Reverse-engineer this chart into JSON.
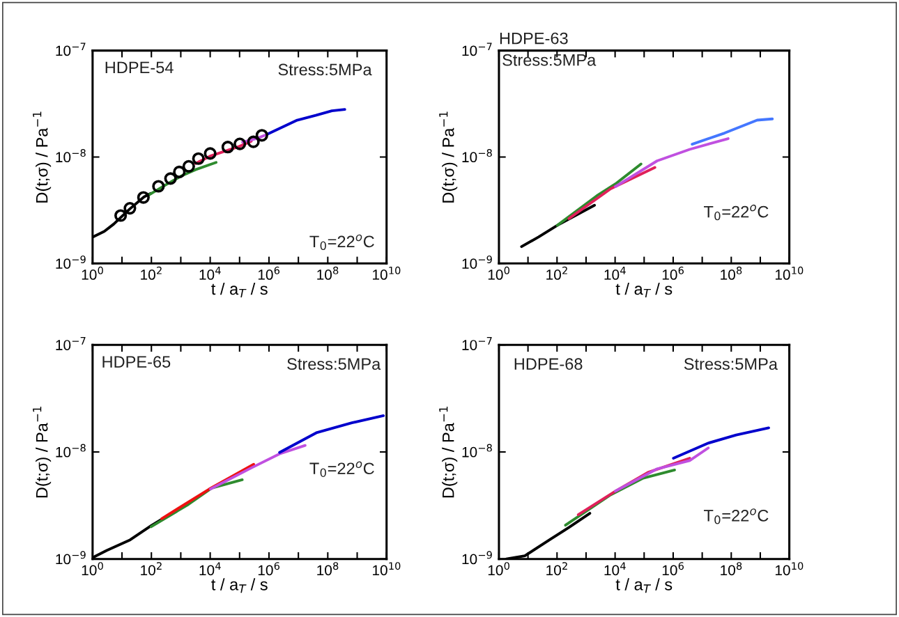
{
  "chart_data": [
    {
      "type": "line",
      "xlabel": "t / a$_{T}$ / s",
      "ylabel": "D(t;σ) / Pa$^{−1}$",
      "log": "xy",
      "grid": false,
      "marker": "none",
      "line_style": "solid",
      "xlim": [
        1,
        10000000000.0
      ],
      "ylim": [
        1e-09,
        1e-07
      ],
      "xticks": [
        {
          "value": 1,
          "label": "10$^{0}$"
        },
        {
          "value": 10,
          "label": null
        },
        {
          "value": 100,
          "label": "10$^{2}$"
        },
        {
          "value": 1000,
          "label": null
        },
        {
          "value": 10000,
          "label": "10$^{4}$"
        },
        {
          "value": 100000,
          "label": null
        },
        {
          "value": 1000000,
          "label": "10$^{6}$"
        },
        {
          "value": 10000000,
          "label": null
        },
        {
          "value": 100000000,
          "label": "10$^{8}$"
        },
        {
          "value": 1000000000,
          "label": null
        },
        {
          "value": 10000000000,
          "label": "10$^{10}$"
        }
      ],
      "yticks": [
        {
          "value": 1e-09,
          "label": "10$^{−9}$"
        },
        {
          "value": 1e-08,
          "label": "10$^{−8}$"
        },
        {
          "value": 1e-07,
          "label": "10$^{−7}$"
        }
      ],
      "annotations": [
        "HDPE-54",
        "Stress:5MPa",
        "T$_{0}$=22$^{o}$C"
      ],
      "series": [
        {
          "color": "#000000",
          "x": [
            1,
            2.5,
            5.2,
            18.6,
            56,
            95
          ],
          "values": [
            1.77e-09,
            2e-09,
            2.34e-09,
            3.26e-09,
            4.22e-09,
            4.55e-09
          ]
        },
        {
          "color": "#2e8b2e",
          "x": [
            79,
            316,
            1000,
            3162,
            15850
          ],
          "values": [
            4.37e-09,
            5.5e-09,
            6.6e-09,
            7.6e-09,
            8.9e-09
          ]
        },
        {
          "color": "#e0205a",
          "x": [
            3162,
            10000,
            100000,
            250000
          ],
          "values": [
            8.7e-09,
            1.02e-08,
            1.26e-08,
            1.41e-08
          ]
        },
        {
          "color": "#c050e0",
          "x": [
            126000,
            400000,
            800000
          ],
          "values": [
            1.38e-08,
            1.5e-08,
            1.62e-08
          ]
        },
        {
          "color": "#0000cc",
          "x": [
            850000,
            9100000,
            39000000,
            138000000,
            380000000
          ],
          "values": [
            1.63e-08,
            2.22e-08,
            2.46e-08,
            2.72e-08,
            2.8e-08
          ]
        },
        {
          "type": "scatter",
          "marker": "circle",
          "color": "#000000",
          "x": [
            9.0,
            18.6,
            53.7,
            174,
            447,
            891,
            1862,
            3981,
            10000,
            39800,
            102000,
            295000,
            575000
          ],
          "values": [
            2.82e-09,
            3.3e-09,
            4.17e-09,
            5.31e-09,
            6.28e-09,
            7.24e-09,
            8.18e-09,
            9.66e-09,
            1.08e-08,
            1.24e-08,
            1.33e-08,
            1.39e-08,
            1.6e-08
          ]
        }
      ]
    },
    {
      "type": "line",
      "xlabel": "t / a$_{T}$ / s",
      "ylabel": "D(t;σ) / Pa$^{−1}$",
      "log": "xy",
      "grid": false,
      "marker": "none",
      "line_style": "solid",
      "xlim": [
        1,
        10000000000.0
      ],
      "ylim": [
        1e-09,
        1e-07
      ],
      "xticks": [
        {
          "value": 1,
          "label": "10$^{0}$"
        },
        {
          "value": 10,
          "label": null
        },
        {
          "value": 100,
          "label": "10$^{2}$"
        },
        {
          "value": 1000,
          "label": null
        },
        {
          "value": 10000,
          "label": "10$^{4}$"
        },
        {
          "value": 100000,
          "label": null
        },
        {
          "value": 1000000,
          "label": "10$^{6}$"
        },
        {
          "value": 10000000,
          "label": null
        },
        {
          "value": 100000000,
          "label": "10$^{8}$"
        },
        {
          "value": 1000000000,
          "label": null
        },
        {
          "value": 10000000000,
          "label": "10$^{10}$"
        }
      ],
      "yticks": [
        {
          "value": 1e-09,
          "label": "10$^{−9}$"
        },
        {
          "value": 1e-08,
          "label": "10$^{−8}$"
        },
        {
          "value": 1e-07,
          "label": "10$^{−7}$"
        }
      ],
      "annotations": [
        "HDPE-63",
        "Stress:5MPa",
        "T$_{0}$=22$^{o}$C"
      ],
      "series": [
        {
          "color": "#000000",
          "x": [
            6,
            23,
            102,
            1950
          ],
          "values": [
            1.44e-09,
            1.77e-09,
            2.28e-09,
            3.52e-09
          ]
        },
        {
          "color": "#2e8b2e",
          "x": [
            102,
            2340,
            10200,
            78000
          ],
          "values": [
            2.28e-09,
            4.32e-09,
            5.58e-09,
            8.6e-09
          ]
        },
        {
          "color": "#e0205a",
          "x": [
            257,
            7080,
            234000
          ],
          "values": [
            2.64e-09,
            5.04e-09,
            7.98e-09
          ]
        },
        {
          "color": "#c050e0",
          "x": [
            10200,
            280000,
            3700000,
            78000000
          ],
          "values": [
            5.27e-09,
            9.2e-09,
            1.18e-08,
            1.49e-08
          ]
        },
        {
          "color": "#4477ff",
          "x": [
            4500000,
            59000000,
            780000000,
            2600000000
          ],
          "values": [
            1.32e-08,
            1.68e-08,
            2.22e-08,
            2.28e-08
          ]
        }
      ]
    },
    {
      "type": "line",
      "xlabel": "t / a$_{T}$ / s",
      "ylabel": "D(t;σ) / Pa$^{−1}$",
      "log": "xy",
      "grid": false,
      "marker": "none",
      "line_style": "solid",
      "xlim": [
        1,
        10000000000.0
      ],
      "ylim": [
        1e-09,
        1e-07
      ],
      "xticks": [
        {
          "value": 1,
          "label": "10$^{0}$"
        },
        {
          "value": 10,
          "label": null
        },
        {
          "value": 100,
          "label": "10$^{2}$"
        },
        {
          "value": 1000,
          "label": null
        },
        {
          "value": 10000,
          "label": "10$^{4}$"
        },
        {
          "value": 100000,
          "label": null
        },
        {
          "value": 1000000,
          "label": "10$^{6}$"
        },
        {
          "value": 10000000,
          "label": null
        },
        {
          "value": 100000000,
          "label": "10$^{8}$"
        },
        {
          "value": 1000000000,
          "label": null
        },
        {
          "value": 10000000000,
          "label": "10$^{10}$"
        }
      ],
      "yticks": [
        {
          "value": 1e-09,
          "label": "10$^{−9}$"
        },
        {
          "value": 1e-08,
          "label": "10$^{−8}$"
        },
        {
          "value": 1e-07,
          "label": "10$^{−7}$"
        }
      ],
      "annotations": [
        "HDPE-65",
        "Stress:5MPa",
        "T$_{0}$=22$^{o}$C"
      ],
      "series": [
        {
          "color": "#000000",
          "x": [
            1,
            3,
            19,
            98,
            1510
          ],
          "values": [
            1.03e-09,
            1.2e-09,
            1.51e-09,
            2.05e-09,
            3.24e-09
          ]
        },
        {
          "color": "#2e8b2e",
          "x": [
            98,
            1820,
            11200,
            123000
          ],
          "values": [
            2e-09,
            3.24e-09,
            4.6e-09,
            5.5e-09
          ]
        },
        {
          "color": "#ee1111",
          "x": [
            224,
            9300,
            302000
          ],
          "values": [
            2.38e-09,
            4.5e-09,
            7.67e-09
          ]
        },
        {
          "color": "#c050e0",
          "x": [
            10200,
            251000,
            2290000,
            17000000
          ],
          "values": [
            4.5e-09,
            7.1e-09,
            9.6e-09,
            1.15e-08
          ]
        },
        {
          "color": "#0000cc",
          "x": [
            2290000,
            43000000,
            660000000,
            7800000000
          ],
          "values": [
            9.9e-09,
            1.52e-08,
            1.87e-08,
            2.18e-08
          ]
        }
      ]
    },
    {
      "type": "line",
      "xlabel": "t / a$_{T}$ / s",
      "ylabel": "D(t;σ) / Pa$^{−1}$",
      "log": "xy",
      "grid": false,
      "marker": "none",
      "line_style": "solid",
      "xlim": [
        1,
        10000000000.0
      ],
      "ylim": [
        1e-09,
        1e-07
      ],
      "xticks": [
        {
          "value": 1,
          "label": "10$^{0}$"
        },
        {
          "value": 10,
          "label": null
        },
        {
          "value": 100,
          "label": "10$^{2}$"
        },
        {
          "value": 1000,
          "label": null
        },
        {
          "value": 10000,
          "label": "10$^{4}$"
        },
        {
          "value": 100000,
          "label": null
        },
        {
          "value": 1000000,
          "label": "10$^{6}$"
        },
        {
          "value": 10000000,
          "label": null
        },
        {
          "value": 100000000,
          "label": "10$^{8}$"
        },
        {
          "value": 1000000000,
          "label": null
        },
        {
          "value": 10000000000,
          "label": "10$^{10}$"
        }
      ],
      "yticks": [
        {
          "value": 1e-09,
          "label": "10$^{−9}$"
        },
        {
          "value": 1e-08,
          "label": "10$^{−8}$"
        },
        {
          "value": 1e-07,
          "label": "10$^{−7}$"
        }
      ],
      "annotations": [
        "HDPE-68",
        "Stress:5MPa",
        "T$_{0}$=22$^{o}$C"
      ],
      "series": [
        {
          "color": "#000000",
          "x": [
            1.8,
            7.8,
            59,
            257,
            1350
          ],
          "values": [
            1e-09,
            1.07e-09,
            1.53e-09,
            1.97e-09,
            2.67e-09
          ]
        },
        {
          "color": "#2e8b2e",
          "x": [
            195,
            7080,
            93000,
            1120000
          ],
          "values": [
            2.07e-09,
            3.98e-09,
            5.69e-09,
            6.78e-09
          ]
        },
        {
          "color": "#e0205a",
          "x": [
            537,
            10200,
            135000,
            3700000
          ],
          "values": [
            2.59e-09,
            4.3e-09,
            6.44e-09,
            8.73e-09
          ]
        },
        {
          "color": "#c050e0",
          "x": [
            10200,
            280000,
            3700000,
            16200000
          ],
          "values": [
            4.3e-09,
            6.95e-09,
            8.3e-09,
            1.09e-08
          ]
        },
        {
          "color": "#0000cc",
          "x": [
            1020000,
            16200000,
            148000000,
            1950000000
          ],
          "values": [
            8.73e-09,
            1.21e-08,
            1.44e-08,
            1.68e-08
          ]
        }
      ]
    }
  ]
}
